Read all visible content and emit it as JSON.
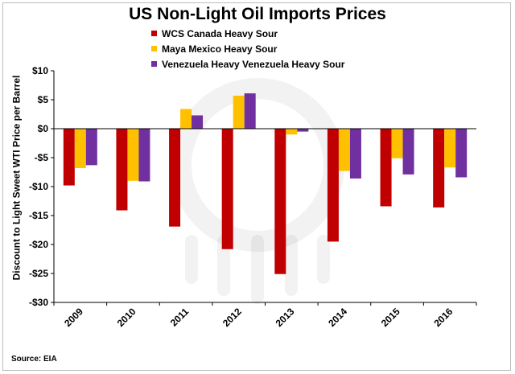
{
  "chart_data": {
    "type": "bar",
    "title": "US Non-Light Oil Imports Prices",
    "ylabel": "Discount to Light Sweet WTI Price per Barrel",
    "xlabel": "",
    "categories": [
      "2009",
      "2010",
      "2011",
      "2012",
      "2013",
      "2014",
      "2015",
      "2016"
    ],
    "ylim": [
      -30,
      10
    ],
    "yticks": [
      10,
      5,
      0,
      -5,
      -10,
      -15,
      -20,
      -25,
      -30
    ],
    "ytick_labels": [
      "$10",
      "$5",
      "$0",
      "-$5",
      "-$10",
      "-$15",
      "-$20",
      "-$25",
      "-$30"
    ],
    "grid": false,
    "legend_position": "top-left",
    "series": [
      {
        "name": "WCS Canada Heavy Sour",
        "color": "#c00000",
        "values": [
          -9.8,
          -14.1,
          -16.9,
          -20.8,
          -25.1,
          -19.5,
          -13.4,
          -13.6
        ]
      },
      {
        "name": "Maya Mexico Heavy Sour",
        "color": "#ffc000",
        "values": [
          -6.8,
          -9.0,
          3.4,
          5.7,
          -1.0,
          -7.3,
          -5.1,
          -6.7
        ]
      },
      {
        "name": "Venezuela Heavy Venezuela Heavy Sour",
        "color": "#7030a0",
        "values": [
          -6.3,
          -9.1,
          2.3,
          6.1,
          -0.5,
          -8.6,
          -7.9,
          -8.4
        ]
      }
    ]
  },
  "source_note": "Source: EIA"
}
